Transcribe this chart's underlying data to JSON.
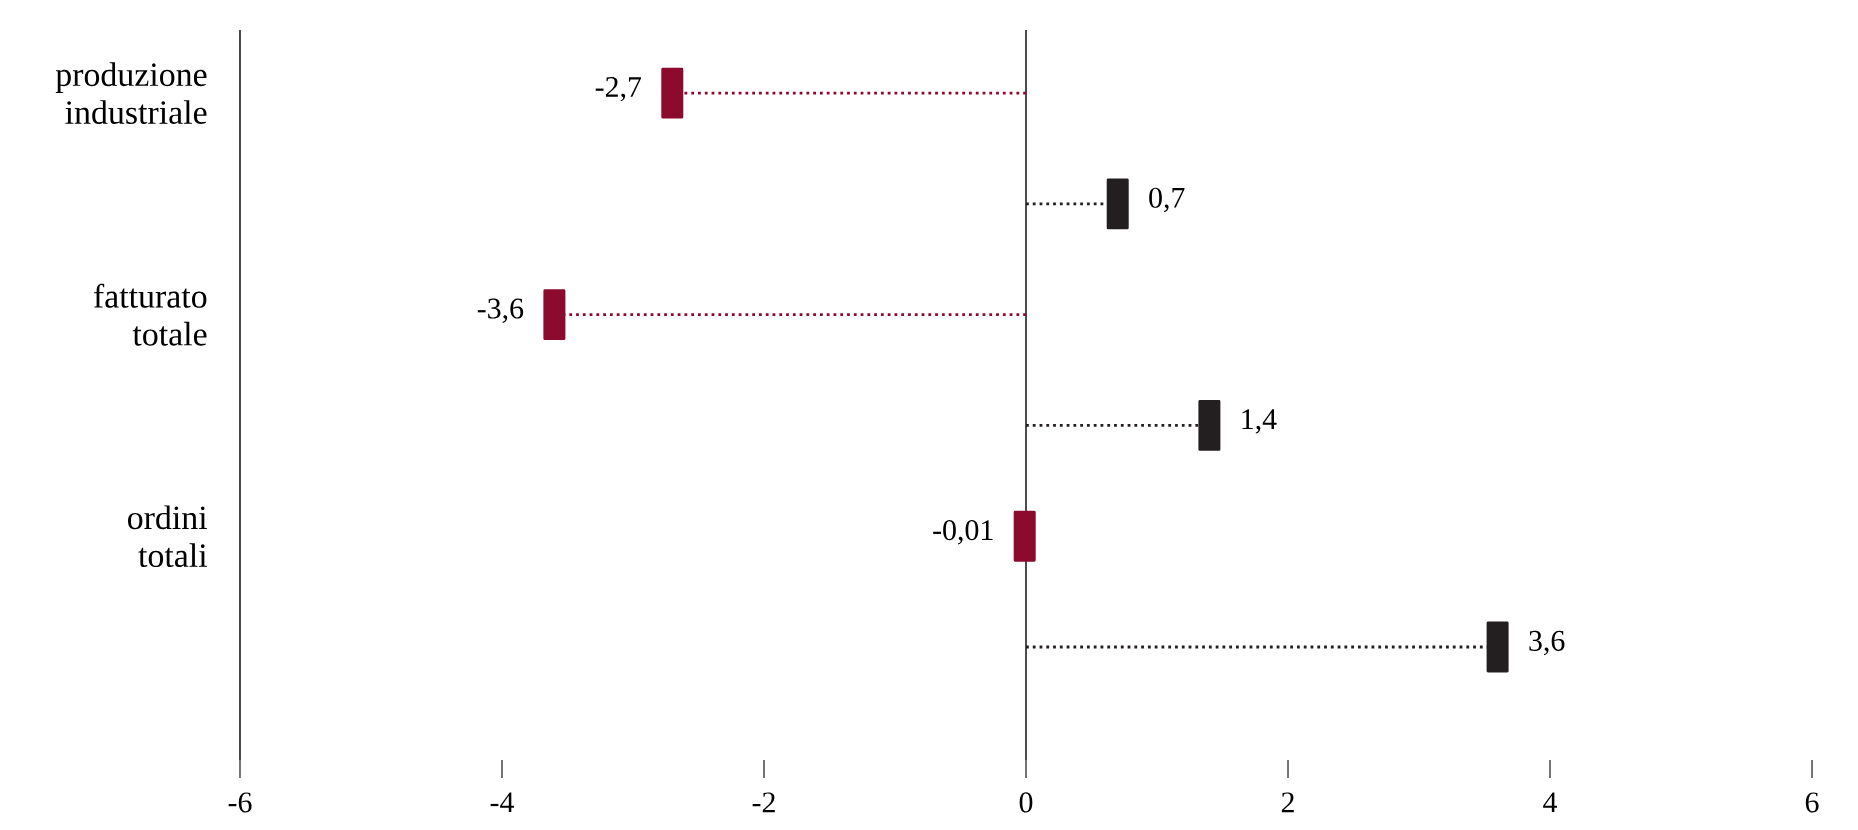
{
  "chart_data": {
    "type": "lollipop",
    "orientation": "horizontal",
    "categories": [
      "produzione industriale",
      null,
      "fatturato totale",
      null,
      "ordini totali",
      null
    ],
    "series": [
      {
        "color": "#8c0a2e",
        "values": [
          -2.7,
          null,
          -3.6,
          null,
          -0.01,
          null
        ],
        "value_labels": [
          "-2,7",
          null,
          "-3,6",
          null,
          "-0,01",
          null
        ]
      },
      {
        "color": "#231f20",
        "values": [
          null,
          0.7,
          null,
          1.4,
          null,
          3.6
        ],
        "value_labels": [
          null,
          "0,7",
          null,
          "1,4",
          null,
          "3,6"
        ]
      }
    ],
    "xlim": [
      -6,
      6
    ],
    "xticks": [
      -6,
      -4,
      -2,
      0,
      2,
      4,
      6
    ],
    "ref_lines": [
      {
        "axis": "x",
        "value": 0,
        "color": "#231f20"
      }
    ],
    "grid": false,
    "line_style": "dotted"
  }
}
